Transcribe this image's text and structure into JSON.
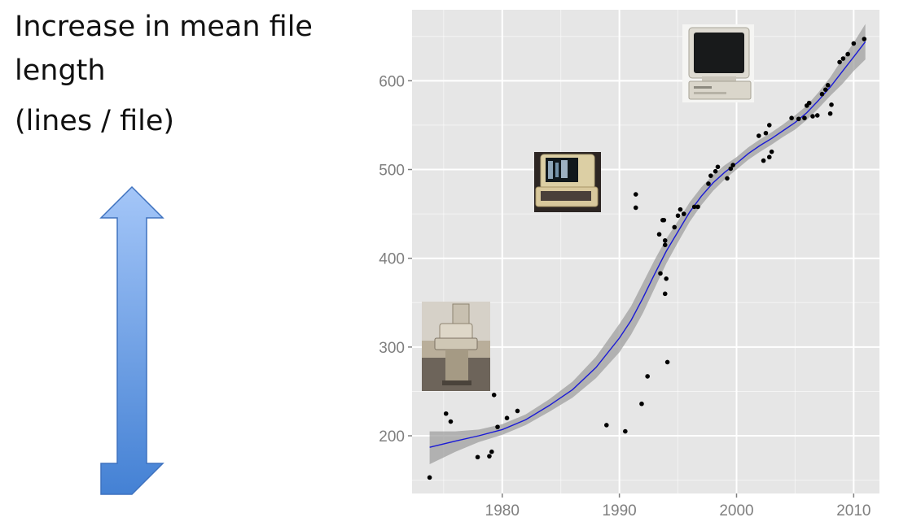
{
  "title": "Increase in mean file length",
  "subtitle": "(lines / file)",
  "icons": {
    "arrow": "double-headed-vertical-arrow",
    "photos": [
      "teletype-terminal-photo",
      "video-terminal-photo",
      "desktop-computer-photo"
    ]
  },
  "colors": {
    "panel": "#e6e6e6",
    "grid": "#ffffff",
    "points": "#000000",
    "trend": "#1a1ad6",
    "band": "#9a9a9a",
    "arrow_top": "#a4c6f8",
    "arrow_bottom": "#4481d4"
  },
  "chart_data": {
    "type": "scatter",
    "xlim": [
      1972.3,
      2012.2
    ],
    "ylim": [
      135,
      680
    ],
    "xticks": [
      1980,
      1990,
      2000,
      2010
    ],
    "yticks": [
      200,
      300,
      400,
      500,
      600
    ],
    "grid": true,
    "points": [
      [
        1973.8,
        153
      ],
      [
        1975.2,
        225
      ],
      [
        1975.6,
        216
      ],
      [
        1977.9,
        176
      ],
      [
        1978.9,
        177
      ],
      [
        1979.1,
        182
      ],
      [
        1979.3,
        246
      ],
      [
        1979.6,
        210
      ],
      [
        1980.4,
        220
      ],
      [
        1981.3,
        228
      ],
      [
        1988.9,
        212
      ],
      [
        1990.5,
        205
      ],
      [
        1991.4,
        472
      ],
      [
        1991.4,
        457
      ],
      [
        1991.9,
        236
      ],
      [
        1992.4,
        267
      ],
      [
        1993.4,
        427
      ],
      [
        1993.5,
        383
      ],
      [
        1993.7,
        443
      ],
      [
        1993.8,
        443
      ],
      [
        1993.9,
        415
      ],
      [
        1993.9,
        420
      ],
      [
        1994.0,
        377
      ],
      [
        1993.9,
        360
      ],
      [
        1994.1,
        283
      ],
      [
        1994.7,
        435
      ],
      [
        1995.0,
        448
      ],
      [
        1995.2,
        455
      ],
      [
        1995.5,
        450
      ],
      [
        1996.4,
        458
      ],
      [
        1996.7,
        458
      ],
      [
        1997.6,
        484
      ],
      [
        1997.8,
        493
      ],
      [
        1998.2,
        498
      ],
      [
        1998.4,
        503
      ],
      [
        1999.2,
        490
      ],
      [
        1999.5,
        501
      ],
      [
        1999.7,
        505
      ],
      [
        2001.9,
        538
      ],
      [
        2002.3,
        510
      ],
      [
        2002.5,
        541
      ],
      [
        2002.8,
        550
      ],
      [
        2002.8,
        514
      ],
      [
        2003.0,
        520
      ],
      [
        2004.7,
        558
      ],
      [
        2005.3,
        557
      ],
      [
        2005.8,
        558
      ],
      [
        2006.0,
        572
      ],
      [
        2006.2,
        575
      ],
      [
        2006.5,
        560
      ],
      [
        2006.9,
        561
      ],
      [
        2007.3,
        585
      ],
      [
        2007.6,
        590
      ],
      [
        2007.8,
        595
      ],
      [
        2008.0,
        563
      ],
      [
        2008.1,
        573
      ],
      [
        2008.8,
        621
      ],
      [
        2009.1,
        625
      ],
      [
        2009.5,
        630
      ],
      [
        2010.0,
        642
      ],
      [
        2010.9,
        647
      ]
    ],
    "trend": [
      [
        1973.8,
        187
      ],
      [
        1976,
        194
      ],
      [
        1978,
        200
      ],
      [
        1980,
        207
      ],
      [
        1982,
        218
      ],
      [
        1984,
        234
      ],
      [
        1986,
        252
      ],
      [
        1988,
        277
      ],
      [
        1990,
        310
      ],
      [
        1991,
        330
      ],
      [
        1992,
        355
      ],
      [
        1993,
        382
      ],
      [
        1994,
        408
      ],
      [
        1995,
        430
      ],
      [
        1996,
        452
      ],
      [
        1997,
        470
      ],
      [
        1998,
        485
      ],
      [
        1999,
        497
      ],
      [
        2000,
        507
      ],
      [
        2001,
        518
      ],
      [
        2002,
        527
      ],
      [
        2003,
        535
      ],
      [
        2004,
        544
      ],
      [
        2005,
        553
      ],
      [
        2006,
        564
      ],
      [
        2007,
        578
      ],
      [
        2008,
        593
      ],
      [
        2009,
        610
      ],
      [
        2010,
        627
      ],
      [
        2011,
        644
      ]
    ],
    "band_upper": [
      [
        1973.8,
        205
      ],
      [
        1976,
        205
      ],
      [
        1978,
        207
      ],
      [
        1980,
        213
      ],
      [
        1982,
        224
      ],
      [
        1984,
        241
      ],
      [
        1986,
        261
      ],
      [
        1988,
        289
      ],
      [
        1990,
        326
      ],
      [
        1991,
        346
      ],
      [
        1992,
        372
      ],
      [
        1993,
        398
      ],
      [
        1994,
        422
      ],
      [
        1995,
        442
      ],
      [
        1996,
        463
      ],
      [
        1997,
        480
      ],
      [
        1998,
        494
      ],
      [
        1999,
        505
      ],
      [
        2000,
        514
      ],
      [
        2001,
        525
      ],
      [
        2002,
        534
      ],
      [
        2003,
        542
      ],
      [
        2004,
        551
      ],
      [
        2005,
        561
      ],
      [
        2006,
        572
      ],
      [
        2007,
        587
      ],
      [
        2008,
        604
      ],
      [
        2009,
        624
      ],
      [
        2010,
        643
      ],
      [
        2011,
        664
      ]
    ],
    "band_lower": [
      [
        1973.8,
        168
      ],
      [
        1976,
        182
      ],
      [
        1978,
        193
      ],
      [
        1980,
        201
      ],
      [
        1982,
        212
      ],
      [
        1984,
        227
      ],
      [
        1986,
        243
      ],
      [
        1988,
        265
      ],
      [
        1990,
        294
      ],
      [
        1991,
        314
      ],
      [
        1992,
        338
      ],
      [
        1993,
        366
      ],
      [
        1994,
        394
      ],
      [
        1995,
        418
      ],
      [
        1996,
        441
      ],
      [
        1997,
        460
      ],
      [
        1998,
        476
      ],
      [
        1999,
        489
      ],
      [
        2000,
        500
      ],
      [
        2001,
        511
      ],
      [
        2002,
        520
      ],
      [
        2003,
        528
      ],
      [
        2004,
        537
      ],
      [
        2005,
        545
      ],
      [
        2006,
        556
      ],
      [
        2007,
        569
      ],
      [
        2008,
        583
      ],
      [
        2009,
        596
      ],
      [
        2010,
        611
      ],
      [
        2011,
        624
      ]
    ]
  }
}
